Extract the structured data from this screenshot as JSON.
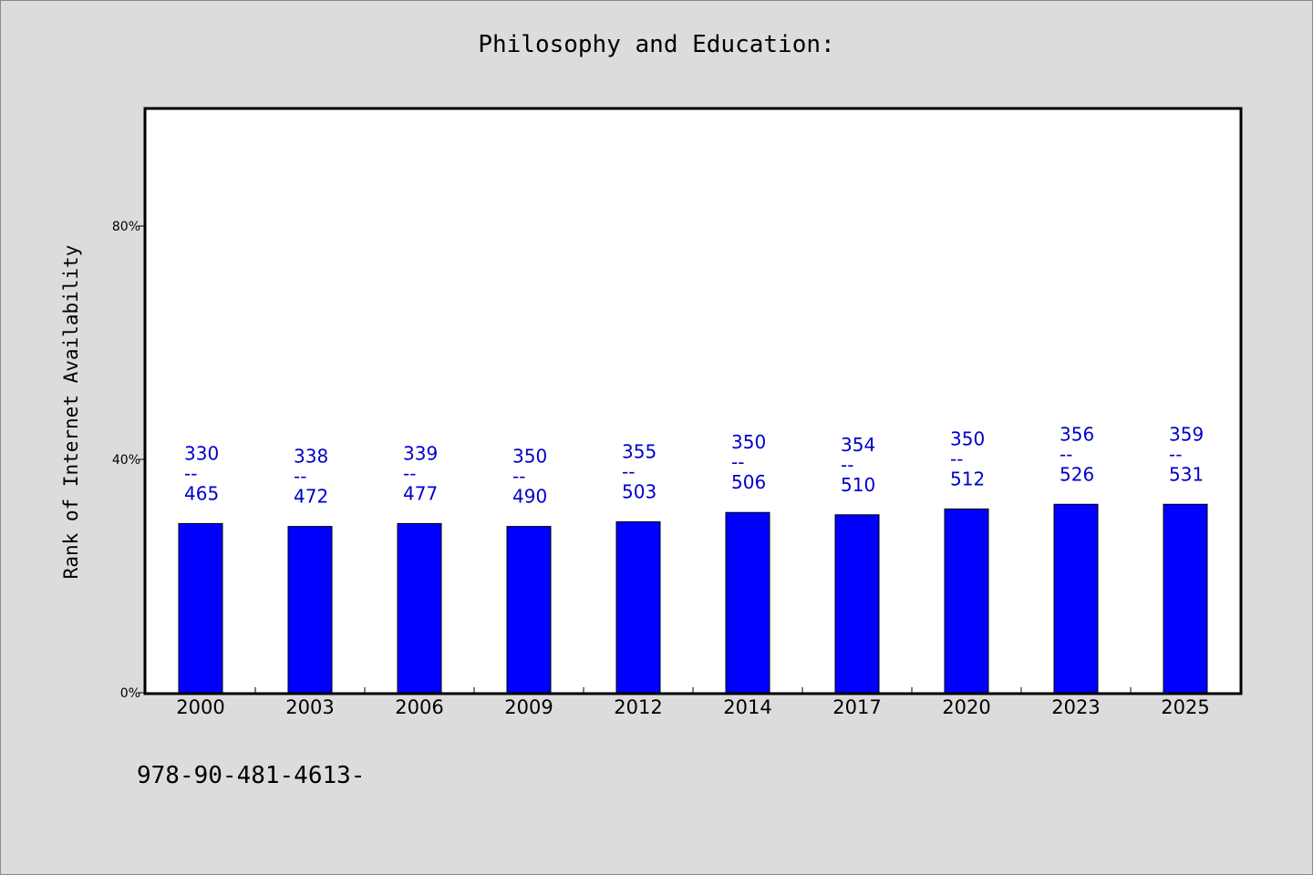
{
  "chart_data": {
    "type": "bar",
    "title": "Philosophy and Education:",
    "xlabel": "",
    "ylabel": "Rank of Internet Availability",
    "ylim": [
      0,
      100
    ],
    "yticks": [
      0,
      40,
      80
    ],
    "ytick_labels": [
      "0%",
      "40%",
      "80%"
    ],
    "grid": false,
    "categories": [
      "2000",
      "2003",
      "2006",
      "2009",
      "2012",
      "2014",
      "2017",
      "2020",
      "2023",
      "2025"
    ],
    "values": [
      29,
      28.5,
      29,
      28.5,
      29.3,
      30.9,
      30.5,
      31.5,
      32.3,
      32.3
    ],
    "data_labels": [
      {
        "top": "330",
        "sep": "--",
        "bottom": "465"
      },
      {
        "top": "338",
        "sep": "--",
        "bottom": "472"
      },
      {
        "top": "339",
        "sep": "--",
        "bottom": "477"
      },
      {
        "top": "350",
        "sep": "--",
        "bottom": "490"
      },
      {
        "top": "355",
        "sep": "--",
        "bottom": "503"
      },
      {
        "top": "350",
        "sep": "--",
        "bottom": "506"
      },
      {
        "top": "354",
        "sep": "--",
        "bottom": "510"
      },
      {
        "top": "350",
        "sep": "--",
        "bottom": "512"
      },
      {
        "top": "356",
        "sep": "--",
        "bottom": "526"
      },
      {
        "top": "359",
        "sep": "--",
        "bottom": "531"
      }
    ],
    "bar_color": "#0000ff",
    "label_color": "#0000cc"
  },
  "footnote": "978-90-481-4613-"
}
